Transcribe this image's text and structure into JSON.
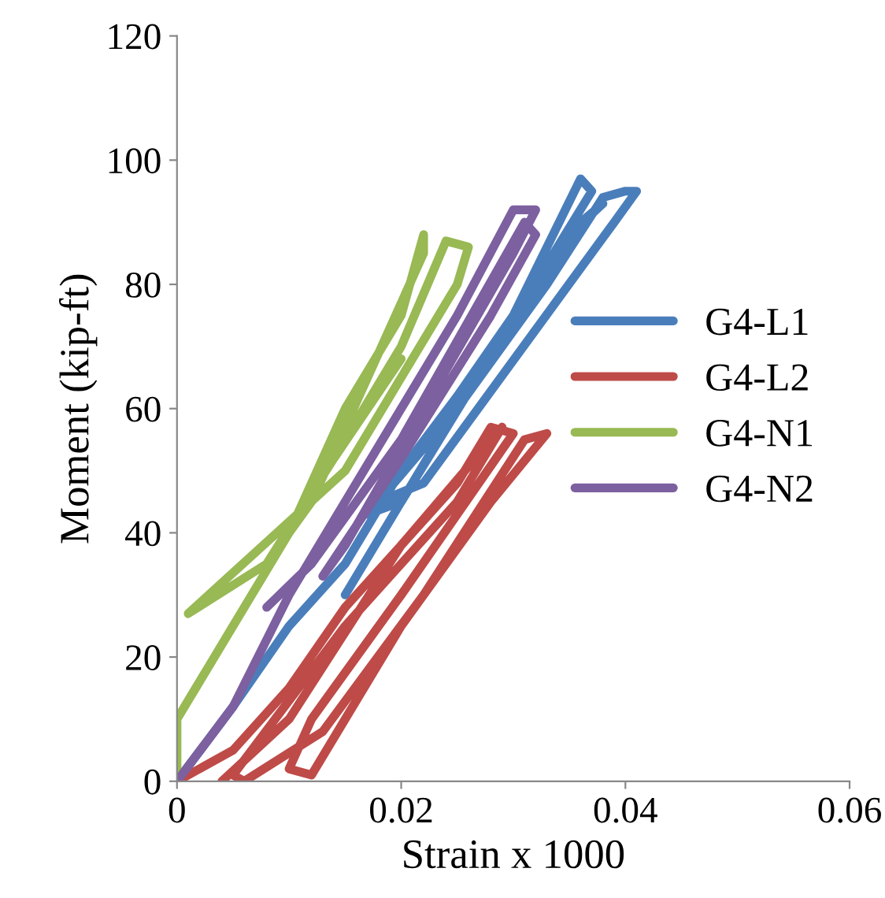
{
  "chart_data": {
    "type": "line",
    "xlabel": "Strain x 1000",
    "ylabel": "Moment (kip-ft)",
    "xlim": [
      0,
      0.06
    ],
    "xticks": [
      0,
      0.02,
      0.04,
      0.06
    ],
    "ylim": [
      0,
      120
    ],
    "yticks": [
      0,
      20,
      40,
      60,
      80,
      100,
      120
    ],
    "grid": false,
    "legend": "right",
    "marker": "none",
    "line_style": "solid",
    "series": [
      {
        "name": "G4-L1",
        "color": "#4a7ebb",
        "x": [
          0,
          0.005,
          0.01,
          0.015,
          0.02,
          0.025,
          0.03,
          0.036,
          0.037,
          0.02,
          0.017,
          0.025,
          0.033,
          0.038,
          0.04,
          0.041,
          0.039,
          0.022,
          0.018,
          0.028,
          0.035,
          0.038,
          0.036,
          0.03,
          0.015
        ],
        "values": [
          0,
          12,
          25,
          35,
          50,
          62,
          75,
          97,
          95,
          45,
          43,
          60,
          80,
          94,
          95,
          95,
          90,
          48,
          45,
          68,
          88,
          93,
          90,
          75,
          30
        ]
      },
      {
        "name": "G4-L2",
        "color": "#be4b48",
        "x": [
          0,
          0.005,
          0.01,
          0.015,
          0.02,
          0.025,
          0.028,
          0.03,
          0.02,
          0.012,
          0.01,
          0.012,
          0.02,
          0.028,
          0.033,
          0.031,
          0.022,
          0.013,
          0.006,
          0.005,
          0.015,
          0.025,
          0.029,
          0.02,
          0.01,
          0.004
        ],
        "values": [
          0,
          5,
          15,
          28,
          38,
          48,
          57,
          56,
          30,
          10,
          2,
          1,
          25,
          45,
          56,
          55,
          30,
          8,
          0,
          1,
          25,
          45,
          57,
          38,
          10,
          0
        ]
      },
      {
        "name": "G4-N1",
        "color": "#98b954",
        "x": [
          0,
          0,
          0.005,
          0.01,
          0.015,
          0.02,
          0.022,
          0.022,
          0.012,
          0.008,
          0.015,
          0.02,
          0.024,
          0.026,
          0.025,
          0.015,
          0.001,
          0.008,
          0.014,
          0.02
        ],
        "values": [
          0,
          10,
          25,
          40,
          60,
          75,
          88,
          85,
          45,
          35,
          55,
          70,
          87,
          86,
          80,
          50,
          27,
          35,
          52,
          68
        ]
      },
      {
        "name": "G4-N2",
        "color": "#7d60a0",
        "x": [
          0,
          0.005,
          0.01,
          0.015,
          0.02,
          0.025,
          0.03,
          0.032,
          0.03,
          0.015,
          0.013,
          0.02,
          0.028,
          0.032,
          0.031,
          0.02,
          0.012,
          0.008
        ],
        "values": [
          0,
          12,
          30,
          45,
          60,
          75,
          92,
          92,
          85,
          38,
          33,
          52,
          75,
          88,
          90,
          55,
          35,
          28
        ]
      }
    ]
  }
}
